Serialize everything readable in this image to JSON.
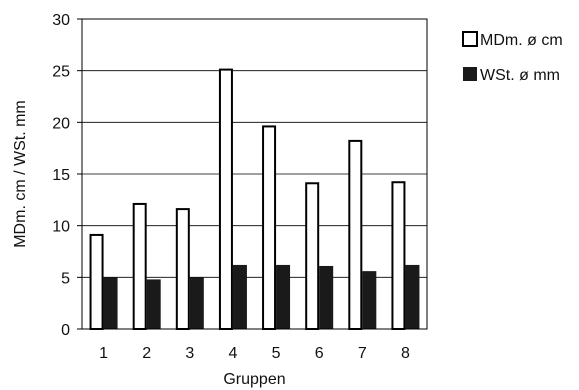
{
  "chart_data": {
    "type": "bar",
    "title": "",
    "xlabel": "Gruppen",
    "ylabel": "MDm. cm / WSt.  mm",
    "categories": [
      "1",
      "2",
      "3",
      "4",
      "5",
      "6",
      "7",
      "8"
    ],
    "ylim": [
      0,
      30
    ],
    "yticks": [
      "0",
      "5",
      "10",
      "15",
      "20",
      "25",
      "30"
    ],
    "grid": "horizontal",
    "legend_position": "right",
    "series": [
      {
        "name": "MDm. ø cm",
        "style": "outline",
        "color": "#000000",
        "values": [
          9.2,
          12.2,
          11.7,
          25.2,
          19.7,
          14.2,
          18.3,
          14.3
        ]
      },
      {
        "name": "WSt. ø mm",
        "style": "filled",
        "color": "#1a1a1a",
        "values": [
          5.0,
          4.8,
          5.0,
          6.2,
          6.2,
          6.1,
          5.6,
          6.2
        ]
      }
    ]
  }
}
